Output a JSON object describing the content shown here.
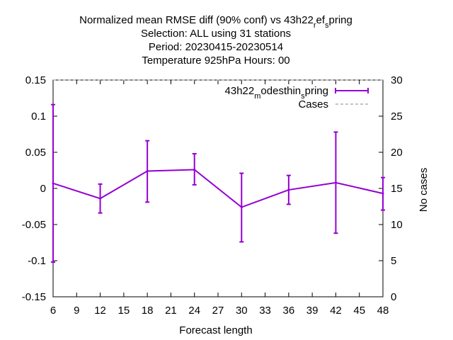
{
  "chart_data": {
    "type": "line",
    "title_lines": [
      "Normalized mean RMSE diff (90% conf) vs 43h22_ref_spring",
      "Selection: ALL using    31 stations",
      "Period: 20230415-20230514",
      "Temperature 925hPa   Hours:  00"
    ],
    "xlabel": "Forecast length",
    "ylabel": "",
    "y2label": "No cases",
    "xlim": [
      6,
      48
    ],
    "ylim": [
      -0.15,
      0.15
    ],
    "y2lim": [
      0,
      30
    ],
    "xticks": [
      "6",
      "9",
      "12",
      "15",
      "18",
      "21",
      "24",
      "27",
      "30",
      "33",
      "36",
      "39",
      "42",
      "45",
      "48"
    ],
    "yticks": [
      "0.15",
      "0.1",
      "0.05",
      "0",
      "-0.05",
      "-0.1",
      "-0.15"
    ],
    "y2ticks": [
      "30",
      "25",
      "20",
      "15",
      "10",
      "5",
      "0"
    ],
    "legend_position": "top-right",
    "series": [
      {
        "name": "43h22_modesthin_spring",
        "color": "#9400d3",
        "x": [
          6,
          12,
          18,
          24,
          30,
          36,
          42,
          48
        ],
        "y": [
          0.007,
          -0.014,
          0.024,
          0.026,
          -0.026,
          -0.002,
          0.008,
          -0.007
        ],
        "err_low": [
          -0.102,
          -0.034,
          -0.019,
          0.005,
          -0.074,
          -0.022,
          -0.062,
          -0.03
        ],
        "err_high": [
          0.116,
          0.006,
          0.066,
          0.048,
          0.021,
          0.018,
          0.078,
          0.015
        ]
      },
      {
        "name": "Cases",
        "color": "#a0a0a0",
        "axis": "y2",
        "x": [
          6,
          12,
          18,
          24,
          30,
          36,
          42,
          48
        ],
        "y": [
          30,
          30,
          30,
          30,
          30,
          30,
          30,
          30
        ]
      }
    ]
  }
}
